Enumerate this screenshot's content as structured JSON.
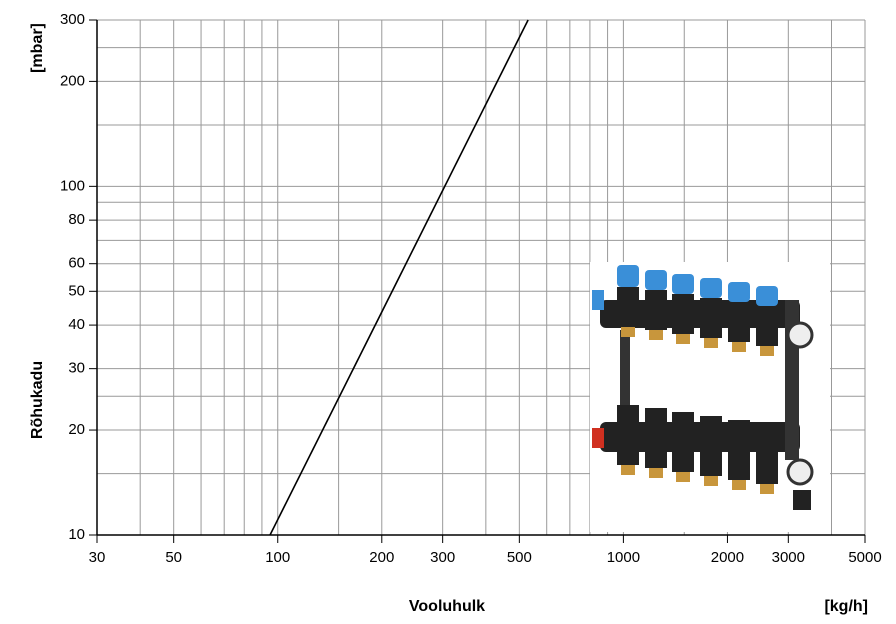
{
  "chart_data": {
    "type": "line",
    "x_label": "Vooluhulk",
    "x_unit": "[kg/h]",
    "y_label": "Rõhukadu",
    "y_unit": "[mbar]",
    "log_x": true,
    "log_y": true,
    "grid": true,
    "xlim": [
      30,
      5000
    ],
    "ylim": [
      10,
      300
    ],
    "xticks": [
      30,
      50,
      100,
      200,
      300,
      500,
      1000,
      2000,
      3000,
      5000
    ],
    "yticks": [
      10,
      20,
      30,
      40,
      50,
      60,
      80,
      100,
      200,
      300
    ],
    "xgrid_minor": [
      40,
      60,
      70,
      80,
      90,
      150,
      400,
      600,
      700,
      800,
      900,
      1500,
      4000
    ],
    "ygrid_minor": [
      15,
      25,
      70,
      90,
      150,
      250
    ],
    "series": [
      {
        "color": "#000000",
        "x": [
          95,
          530
        ],
        "values": [
          10,
          300
        ]
      }
    ]
  }
}
